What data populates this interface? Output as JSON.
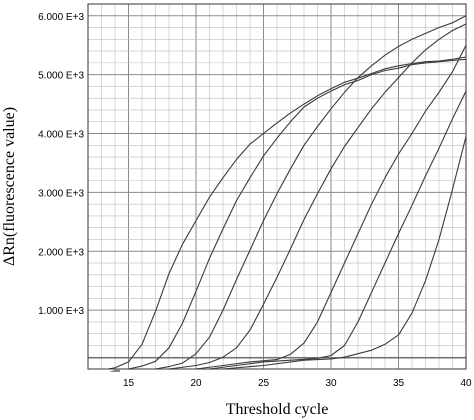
{
  "chart_data": {
    "type": "line",
    "title": "",
    "xlabel": "Threshold cycle",
    "ylabel": "ΔRn(fluorescence value)",
    "xlim": [
      12,
      40
    ],
    "ylim": [
      0,
      6200
    ],
    "grid": true,
    "legend": "none",
    "x_ticks": [
      {
        "value": 15,
        "label": "15"
      },
      {
        "value": 20,
        "label": "20"
      },
      {
        "value": 25,
        "label": "25"
      },
      {
        "value": 30,
        "label": "30"
      },
      {
        "value": 35,
        "label": "35"
      },
      {
        "value": 40,
        "label": "40"
      }
    ],
    "y_ticks": [
      {
        "value": 1000,
        "label": "1.000 E+3"
      },
      {
        "value": 2000,
        "label": "2.000 E+3"
      },
      {
        "value": 3000,
        "label": "3.000 E+3"
      },
      {
        "value": 4000,
        "label": "4.000 E+3"
      },
      {
        "value": 5000,
        "label": "5.000 E+3"
      },
      {
        "value": 6000,
        "label": "6.000 E+3"
      }
    ],
    "threshold": 190,
    "series": [
      {
        "values": [
          [
            13.5,
            0
          ],
          [
            14,
            20
          ],
          [
            15,
            120
          ],
          [
            16,
            420
          ],
          [
            17,
            980
          ],
          [
            18,
            1620
          ],
          [
            19,
            2120
          ],
          [
            20,
            2520
          ],
          [
            21,
            2920
          ],
          [
            22,
            3250
          ],
          [
            23,
            3560
          ],
          [
            24,
            3820
          ],
          [
            25,
            4000
          ],
          [
            26,
            4180
          ],
          [
            27,
            4350
          ],
          [
            28,
            4500
          ],
          [
            29,
            4640
          ],
          [
            30,
            4760
          ],
          [
            31,
            4870
          ],
          [
            32,
            4940
          ],
          [
            33,
            5020
          ],
          [
            34,
            5100
          ],
          [
            35,
            5150
          ],
          [
            36,
            5190
          ],
          [
            37,
            5220
          ],
          [
            38,
            5230
          ],
          [
            39,
            5260
          ],
          [
            40,
            5300
          ]
        ]
      },
      {
        "values": [
          [
            15,
            0
          ],
          [
            16,
            50
          ],
          [
            17,
            130
          ],
          [
            18,
            360
          ],
          [
            19,
            780
          ],
          [
            20,
            1320
          ],
          [
            21,
            1880
          ],
          [
            22,
            2380
          ],
          [
            23,
            2860
          ],
          [
            24,
            3250
          ],
          [
            25,
            3620
          ],
          [
            26,
            3920
          ],
          [
            27,
            4200
          ],
          [
            28,
            4450
          ],
          [
            29,
            4600
          ],
          [
            30,
            4720
          ],
          [
            31,
            4830
          ],
          [
            32,
            4900
          ],
          [
            33,
            5000
          ],
          [
            34,
            5070
          ],
          [
            35,
            5110
          ],
          [
            36,
            5170
          ],
          [
            37,
            5200
          ],
          [
            38,
            5220
          ],
          [
            39,
            5240
          ],
          [
            40,
            5260
          ]
        ]
      },
      {
        "values": [
          [
            17,
            0
          ],
          [
            18,
            40
          ],
          [
            19,
            100
          ],
          [
            20,
            260
          ],
          [
            21,
            540
          ],
          [
            22,
            1000
          ],
          [
            23,
            1520
          ],
          [
            24,
            2020
          ],
          [
            25,
            2520
          ],
          [
            26,
            2980
          ],
          [
            27,
            3400
          ],
          [
            28,
            3800
          ],
          [
            29,
            4120
          ],
          [
            30,
            4420
          ],
          [
            31,
            4700
          ],
          [
            32,
            4950
          ],
          [
            33,
            5150
          ],
          [
            34,
            5330
          ],
          [
            35,
            5480
          ],
          [
            36,
            5600
          ],
          [
            37,
            5700
          ],
          [
            38,
            5800
          ],
          [
            39,
            5880
          ],
          [
            40,
            6000
          ]
        ]
      },
      {
        "values": [
          [
            18,
            0
          ],
          [
            20,
            60
          ],
          [
            21,
            110
          ],
          [
            22,
            200
          ],
          [
            23,
            360
          ],
          [
            24,
            660
          ],
          [
            25,
            1100
          ],
          [
            26,
            1560
          ],
          [
            27,
            2040
          ],
          [
            28,
            2540
          ],
          [
            29,
            2980
          ],
          [
            30,
            3400
          ],
          [
            31,
            3780
          ],
          [
            32,
            4100
          ],
          [
            33,
            4420
          ],
          [
            34,
            4700
          ],
          [
            35,
            4950
          ],
          [
            36,
            5200
          ],
          [
            37,
            5420
          ],
          [
            38,
            5600
          ],
          [
            39,
            5750
          ],
          [
            40,
            5860
          ]
        ]
      },
      {
        "values": [
          [
            20,
            0
          ],
          [
            22,
            60
          ],
          [
            24,
            120
          ],
          [
            26,
            160
          ],
          [
            27,
            250
          ],
          [
            28,
            440
          ],
          [
            29,
            800
          ],
          [
            30,
            1300
          ],
          [
            31,
            1800
          ],
          [
            32,
            2300
          ],
          [
            33,
            2800
          ],
          [
            34,
            3250
          ],
          [
            35,
            3650
          ],
          [
            36,
            4000
          ],
          [
            37,
            4380
          ],
          [
            38,
            4700
          ],
          [
            39,
            5050
          ],
          [
            40,
            5500
          ]
        ]
      },
      {
        "values": [
          [
            21,
            0
          ],
          [
            23,
            60
          ],
          [
            25,
            120
          ],
          [
            27,
            150
          ],
          [
            29,
            180
          ],
          [
            30,
            230
          ],
          [
            31,
            400
          ],
          [
            32,
            800
          ],
          [
            33,
            1300
          ],
          [
            34,
            1800
          ],
          [
            35,
            2300
          ],
          [
            36,
            2780
          ],
          [
            37,
            3280
          ],
          [
            38,
            3750
          ],
          [
            39,
            4250
          ],
          [
            40,
            4720
          ]
        ]
      },
      {
        "values": [
          [
            22,
            0
          ],
          [
            25,
            60
          ],
          [
            28,
            150
          ],
          [
            30,
            170
          ],
          [
            31,
            200
          ],
          [
            32,
            260
          ],
          [
            33,
            320
          ],
          [
            34,
            420
          ],
          [
            35,
            580
          ],
          [
            36,
            950
          ],
          [
            37,
            1500
          ],
          [
            38,
            2200
          ],
          [
            39,
            3050
          ],
          [
            40,
            3950
          ]
        ]
      }
    ]
  }
}
